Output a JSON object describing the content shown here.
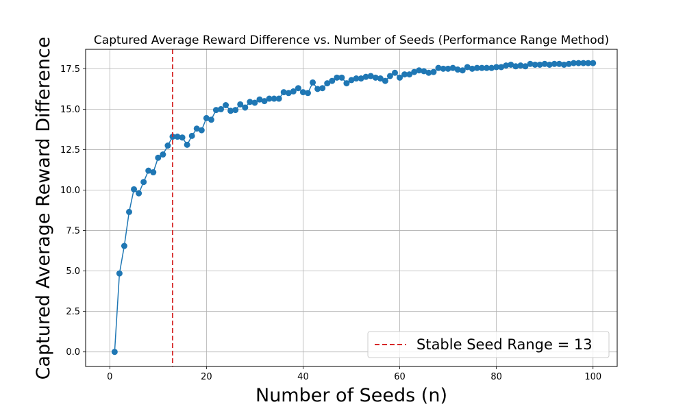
{
  "chart_data": {
    "type": "line",
    "title": "Captured Average Reward Difference vs. Number of Seeds (Performance Range Method)",
    "xlabel": "Number of Seeds (n)",
    "ylabel": "Captured Average Reward Difference",
    "xlim": [
      -5,
      105
    ],
    "ylim": [
      -0.9,
      18.7
    ],
    "xticks": [
      0,
      20,
      40,
      60,
      80,
      100
    ],
    "yticks": [
      0.0,
      2.5,
      5.0,
      7.5,
      10.0,
      12.5,
      15.0,
      17.5
    ],
    "xtick_labels": [
      "0",
      "20",
      "40",
      "60",
      "80",
      "100"
    ],
    "ytick_labels": [
      "0.0",
      "2.5",
      "5.0",
      "7.5",
      "10.0",
      "12.5",
      "15.0",
      "17.5"
    ],
    "grid": true,
    "legend_position": "lower-right",
    "series": [
      {
        "color": "#1f77b4",
        "marker": "circle",
        "x": [
          1,
          2,
          3,
          4,
          5,
          6,
          7,
          8,
          9,
          10,
          11,
          12,
          13,
          14,
          15,
          16,
          17,
          18,
          19,
          20,
          21,
          22,
          23,
          24,
          25,
          26,
          27,
          28,
          29,
          30,
          31,
          32,
          33,
          34,
          35,
          36,
          37,
          38,
          39,
          40,
          41,
          42,
          43,
          44,
          45,
          46,
          47,
          48,
          49,
          50,
          51,
          52,
          53,
          54,
          55,
          56,
          57,
          58,
          59,
          60,
          61,
          62,
          63,
          64,
          65,
          66,
          67,
          68,
          69,
          70,
          71,
          72,
          73,
          74,
          75,
          76,
          77,
          78,
          79,
          80,
          81,
          82,
          83,
          84,
          85,
          86,
          87,
          88,
          89,
          90,
          91,
          92,
          93,
          94,
          95,
          96,
          97,
          98,
          99,
          100
        ],
        "values": [
          0.0,
          4.85,
          6.55,
          8.65,
          10.05,
          9.8,
          10.5,
          11.2,
          11.1,
          12.0,
          12.2,
          12.75,
          13.3,
          13.3,
          13.25,
          12.8,
          13.35,
          13.8,
          13.7,
          14.45,
          14.35,
          14.95,
          15.0,
          15.25,
          14.9,
          14.95,
          15.3,
          15.1,
          15.45,
          15.4,
          15.6,
          15.5,
          15.65,
          15.65,
          15.65,
          16.05,
          16.0,
          16.1,
          16.3,
          16.05,
          16.0,
          16.65,
          16.25,
          16.3,
          16.6,
          16.75,
          16.95,
          16.95,
          16.6,
          16.8,
          16.9,
          16.9,
          17.0,
          17.05,
          16.95,
          16.9,
          16.75,
          17.05,
          17.25,
          16.95,
          17.15,
          17.15,
          17.3,
          17.4,
          17.35,
          17.25,
          17.3,
          17.55,
          17.5,
          17.5,
          17.55,
          17.45,
          17.4,
          17.6,
          17.5,
          17.55,
          17.55,
          17.55,
          17.55,
          17.6,
          17.6,
          17.7,
          17.75,
          17.65,
          17.7,
          17.65,
          17.8,
          17.75,
          17.75,
          17.8,
          17.75,
          17.8,
          17.8,
          17.75,
          17.8,
          17.85,
          17.85,
          17.85,
          17.85,
          17.85
        ]
      }
    ],
    "reference_line": {
      "orientation": "vertical",
      "x": 13,
      "color": "#d62728",
      "style": "dashed",
      "label": "Stable Seed Range = 13"
    }
  }
}
